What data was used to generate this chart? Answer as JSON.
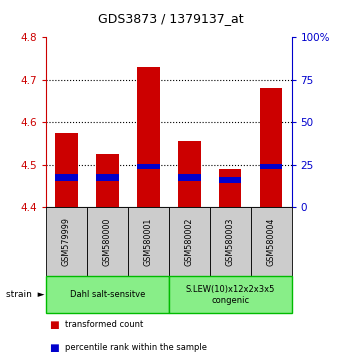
{
  "title": "GDS3873 / 1379137_at",
  "samples": [
    "GSM579999",
    "GSM580000",
    "GSM580001",
    "GSM580002",
    "GSM580003",
    "GSM580004"
  ],
  "bar_bottom": 4.4,
  "red_tops": [
    4.575,
    4.525,
    4.73,
    4.555,
    4.49,
    4.68
  ],
  "blue_bottoms": [
    4.462,
    4.462,
    4.49,
    4.462,
    4.456,
    4.49
  ],
  "blue_tops": [
    4.478,
    4.478,
    4.502,
    4.478,
    4.472,
    4.502
  ],
  "ylim": [
    4.4,
    4.8
  ],
  "yticks_left": [
    4.4,
    4.5,
    4.6,
    4.7,
    4.8
  ],
  "yticks_right": [
    0,
    25,
    50,
    75,
    100
  ],
  "left_color": "#cc0000",
  "right_color": "#0000cc",
  "group_labels": [
    "Dahl salt-sensitve",
    "S.LEW(10)x12x2x3x5\ncongenic"
  ],
  "group_starts": [
    0,
    3
  ],
  "group_ends": [
    3,
    6
  ],
  "group_fill_color": "#88ee88",
  "group_border_color": "#00bb00",
  "sample_box_color": "#cccccc",
  "bar_width": 0.55,
  "grid_yticks": [
    4.5,
    4.6,
    4.7
  ],
  "background_color": "#ffffff"
}
